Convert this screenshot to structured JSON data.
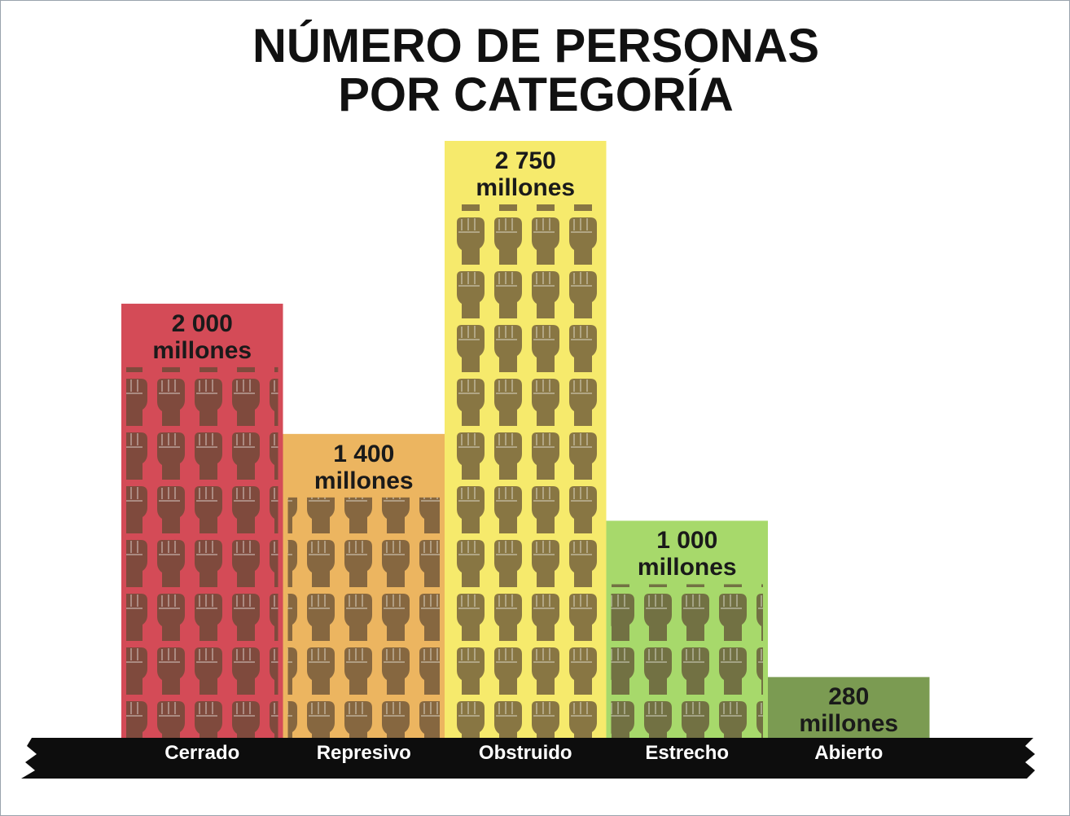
{
  "chart_data": {
    "type": "bar",
    "title": "NÚMERO DE PERSONAS POR CATEGORÍA",
    "categories": [
      "Cerrado",
      "Represivo",
      "Obstruido",
      "Estrecho",
      "Abierto"
    ],
    "values": [
      2000,
      1400,
      2750,
      1000,
      280
    ],
    "value_labels": [
      "2 000 millones",
      "1 400 millones",
      "2 750 millones",
      "1 000 millones",
      "280 millones"
    ],
    "colors": [
      "#d44b57",
      "#ecb560",
      "#f6ea6c",
      "#a7d96b",
      "#7b9b52"
    ]
  }
}
